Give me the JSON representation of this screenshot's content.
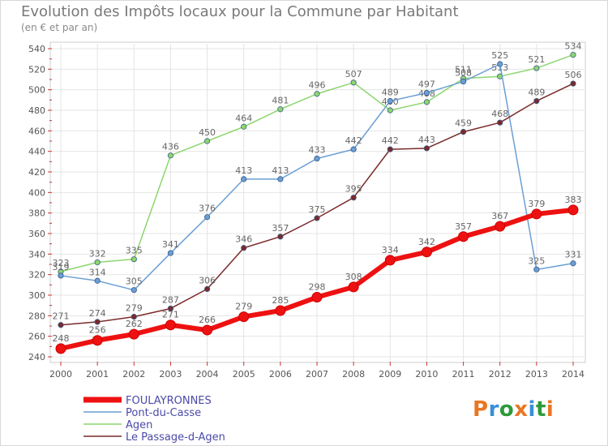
{
  "header": {
    "title": "Evolution des Impôts locaux pour la Commune par Habitant",
    "subtitle": "(en € et par an)"
  },
  "logo": {
    "text": [
      "P",
      "r",
      "o",
      "x",
      "i",
      "t",
      "i"
    ],
    "colors": [
      "#e87722",
      "#3a8fd8",
      "#2d9a3a",
      "#e87722",
      "#3a8fd8",
      "#2d9a3a",
      "#e87722"
    ]
  },
  "chart_data": {
    "type": "line",
    "x": [
      "2000",
      "2001",
      "2002",
      "2003",
      "2004",
      "2005",
      "2006",
      "2007",
      "2008",
      "2009",
      "2010",
      "2011",
      "2012",
      "2013",
      "2014"
    ],
    "ylim": [
      240,
      540
    ],
    "yticks": [
      "240",
      "260",
      "280",
      "300",
      "320",
      "340",
      "360",
      "380",
      "400",
      "420",
      "440",
      "460",
      "480",
      "500",
      "520",
      "540"
    ],
    "grid": true,
    "legend_position": "bottom-left",
    "series": [
      {
        "name": "FOULAYRONNES",
        "color": "#ee1111",
        "values": [
          248,
          256,
          262,
          271,
          266,
          279,
          285,
          298,
          308,
          334,
          342,
          357,
          367,
          379,
          383
        ],
        "labels": [
          "248",
          "256",
          "262",
          "271",
          "266",
          "279",
          "285",
          "298",
          "308",
          "334",
          "342",
          "357",
          "367",
          "379",
          "383"
        ]
      },
      {
        "name": "Pont-du-Casse",
        "color": "#6a9fd4",
        "values": [
          319,
          314,
          305,
          341,
          376,
          413,
          413,
          433,
          442,
          489,
          497,
          508,
          525,
          325,
          331
        ],
        "labels": [
          "319",
          "314",
          "305",
          "341",
          "376",
          "413",
          "413",
          "433",
          "442",
          "489",
          "497",
          "508",
          "525",
          "325",
          "331"
        ]
      },
      {
        "name": "Agen",
        "color": "#8cd66e",
        "values": [
          323,
          332,
          335,
          436,
          450,
          464,
          481,
          496,
          507,
          480,
          488,
          511,
          513,
          521,
          534
        ],
        "labels": [
          "323",
          "332",
          "335",
          "436",
          "450",
          "464",
          "481",
          "496",
          "507",
          "480",
          "488",
          "511",
          "513",
          "521",
          "534"
        ]
      },
      {
        "name": "Le Passage-d-Agen",
        "color": "#7a2a2a",
        "values": [
          271,
          274,
          279,
          287,
          306,
          346,
          357,
          375,
          395,
          442,
          443,
          459,
          468,
          489,
          506
        ],
        "labels": [
          "271",
          "274",
          "279",
          "287",
          "306",
          "346",
          "357",
          "375",
          "395",
          "442",
          "443",
          "459",
          "468",
          "489",
          "506"
        ]
      }
    ]
  }
}
